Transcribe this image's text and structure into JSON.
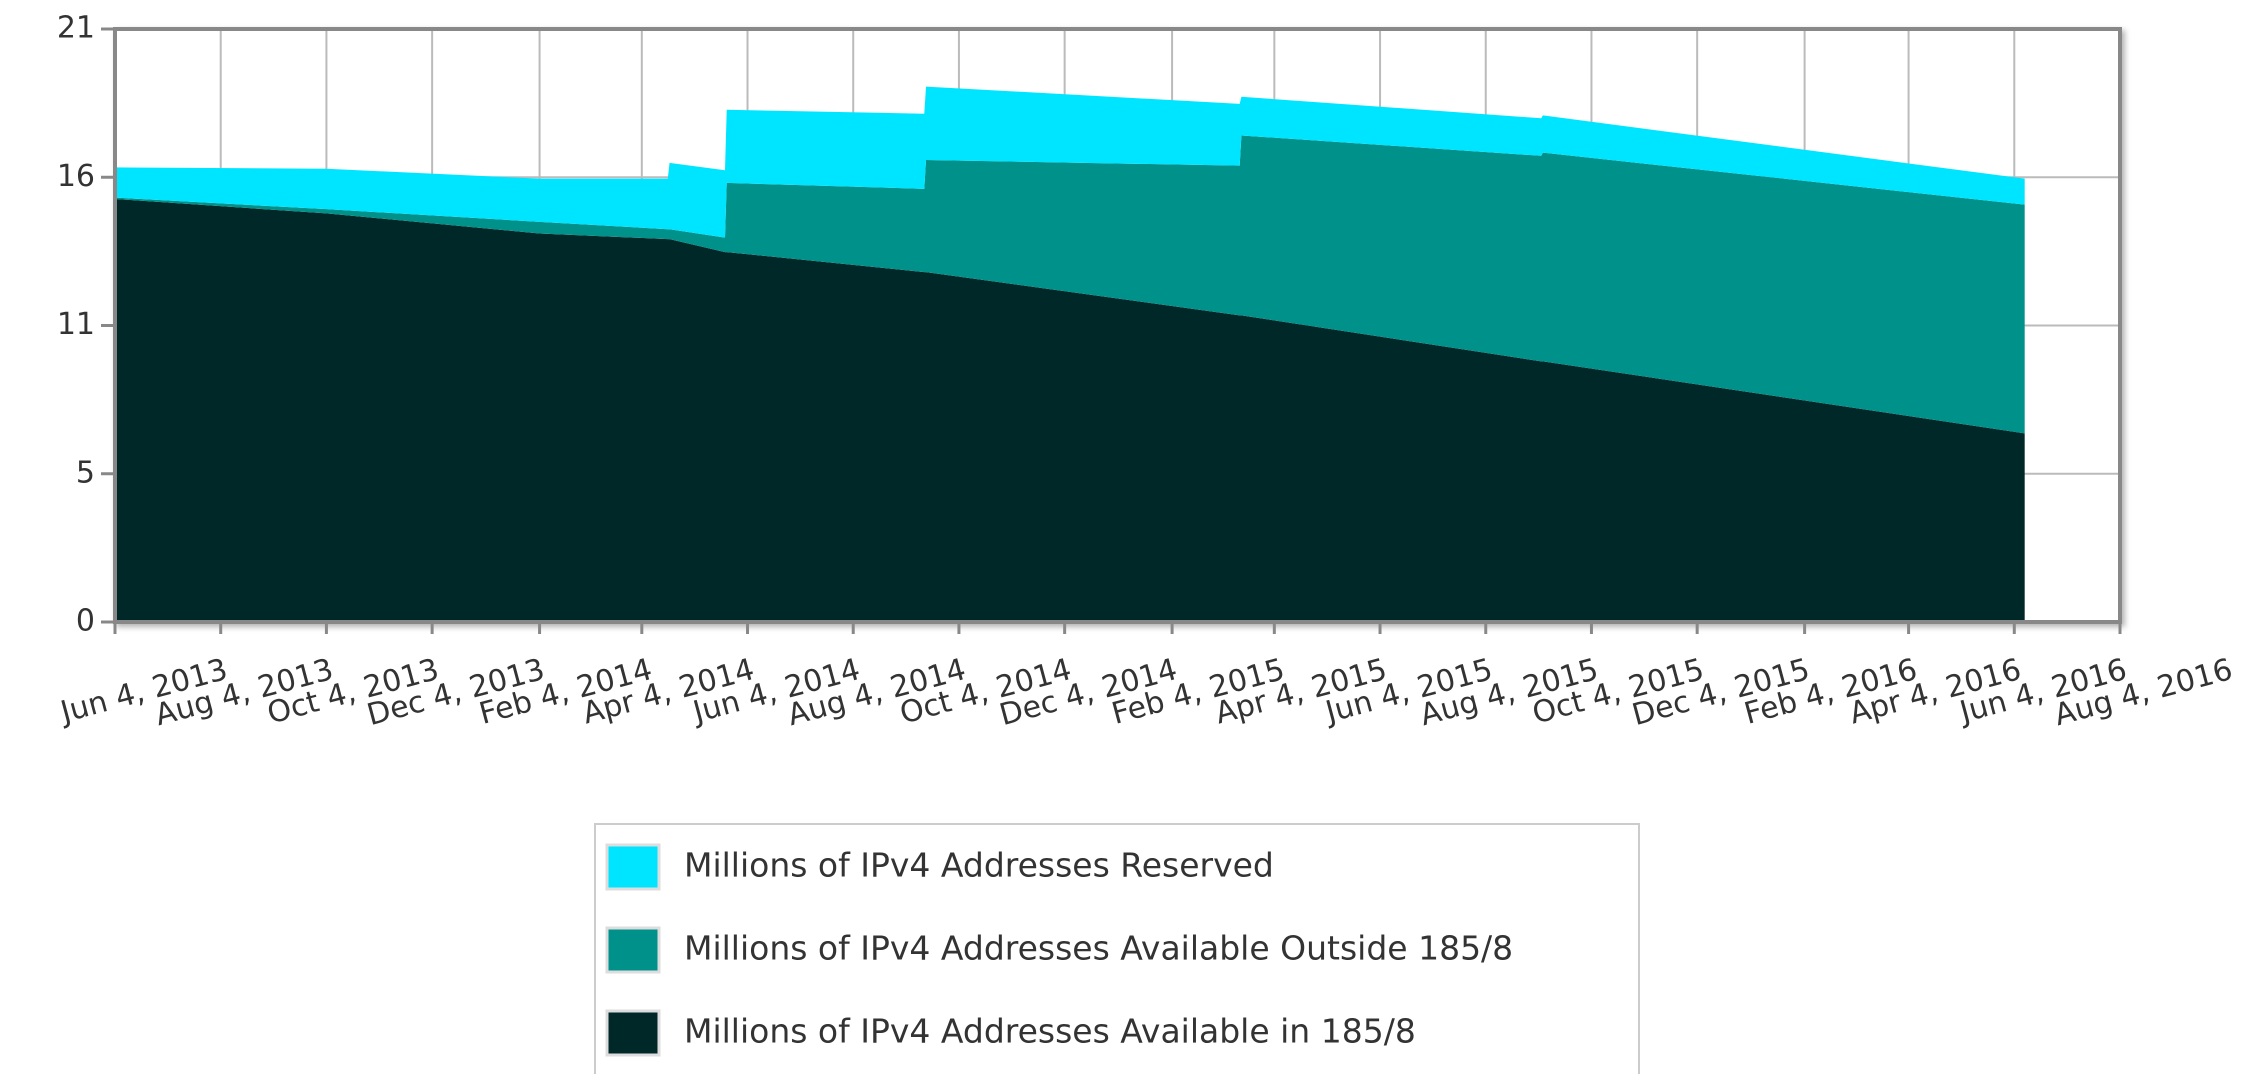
{
  "chart_data": {
    "type": "stacked_area",
    "x": [
      "Jun 4, 2013",
      "Oct 4, 2013",
      "Feb 4, 2014",
      "Apr 19, 2014",
      "Apr 20, 2014",
      "May 22, 2014",
      "May 23, 2014",
      "Sep 14, 2014",
      "Sep 15, 2014",
      "Mar 15, 2015",
      "Mar 16, 2015",
      "Sep 5, 2015",
      "Sep 6, 2015",
      "Jun 10, 2016"
    ],
    "series": [
      {
        "name": "Millions of IPv4 Addresses Available in 185/8",
        "color": "#002828",
        "values": [
          14.98,
          14.47,
          13.76,
          13.56,
          13.56,
          13.1,
          13.1,
          12.39,
          12.39,
          10.86,
          10.86,
          9.23,
          9.23,
          6.68
        ]
      },
      {
        "name": "Millions of IPv4 Addresses Available Outside 185/8",
        "color": "#00918a",
        "values": [
          0.05,
          0.15,
          0.41,
          0.35,
          0.35,
          0.51,
          2.45,
          2.95,
          3.97,
          5.3,
          6.37,
          7.28,
          7.39,
          8.1
        ]
      },
      {
        "name": "Millions of IPv4 Addresses Reserved",
        "color": "#00e5ff",
        "values": [
          1.07,
          1.43,
          1.53,
          1.79,
          2.35,
          2.39,
          2.59,
          2.66,
          2.6,
          2.19,
          1.37,
          1.33,
          1.32,
          0.92
        ]
      }
    ],
    "xlim": [
      "Jun 4, 2013",
      "Aug 4, 2016"
    ],
    "xticks": [
      "Jun 4, 2013",
      "Aug 4, 2013",
      "Oct 4, 2013",
      "Dec 4, 2013",
      "Feb 4, 2014",
      "Apr 4, 2014",
      "Jun 4, 2014",
      "Aug 4, 2014",
      "Oct 4, 2014",
      "Dec 4, 2014",
      "Feb 4, 2015",
      "Apr 4, 2015",
      "Jun 4, 2015",
      "Aug 4, 2015",
      "Oct 4, 2015",
      "Dec 4, 2015",
      "Feb 4, 2016",
      "Apr 4, 2016",
      "Jun 4, 2016",
      "Aug 4, 2016"
    ],
    "ylim": [
      0,
      21
    ],
    "yticks": [
      0,
      {
        "value": 5.25,
        "label": "5"
      },
      {
        "value": 10.5,
        "label": "11"
      },
      {
        "value": 15.75,
        "label": "16"
      },
      21
    ],
    "grid": true
  }
}
